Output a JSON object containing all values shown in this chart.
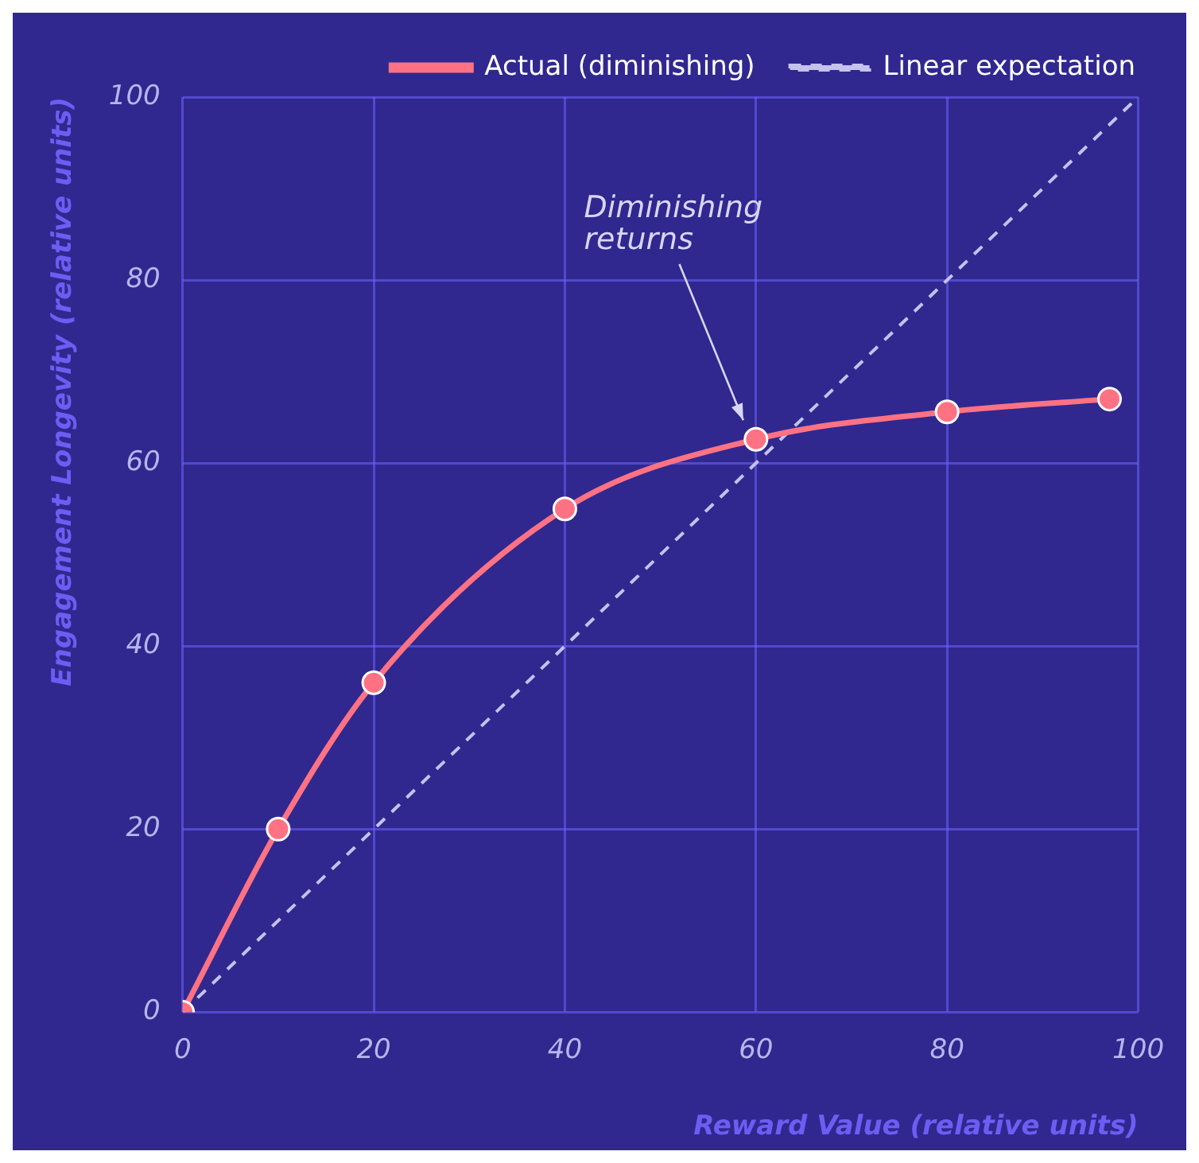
{
  "chart_data": {
    "type": "line",
    "xlabel": "Reward Value (relative units)",
    "ylabel": "Engagement Longevity (relative units)",
    "xlim": [
      0,
      100
    ],
    "xticks": [
      0,
      20,
      40,
      60,
      80,
      100
    ],
    "ylim": [
      0,
      100
    ],
    "yticks": [
      0,
      20,
      40,
      60,
      80,
      100
    ],
    "grid": true,
    "legend": "top right",
    "series": [
      {
        "name": "Actual (diminishing)",
        "color": "#ff7283",
        "x": [
          0,
          10,
          20,
          40,
          60,
          80,
          97
        ],
        "values": [
          0,
          20,
          36,
          55,
          62.6,
          65.6,
          67
        ],
        "marker": "circle",
        "line_style": "solid"
      },
      {
        "name": "Linear expectation",
        "color": "#c4c2ee",
        "x": [
          0,
          100
        ],
        "values": [
          0,
          100
        ],
        "marker": "none",
        "line_style": "dashed"
      }
    ],
    "annotations": [
      "Diminishing returns"
    ]
  }
}
